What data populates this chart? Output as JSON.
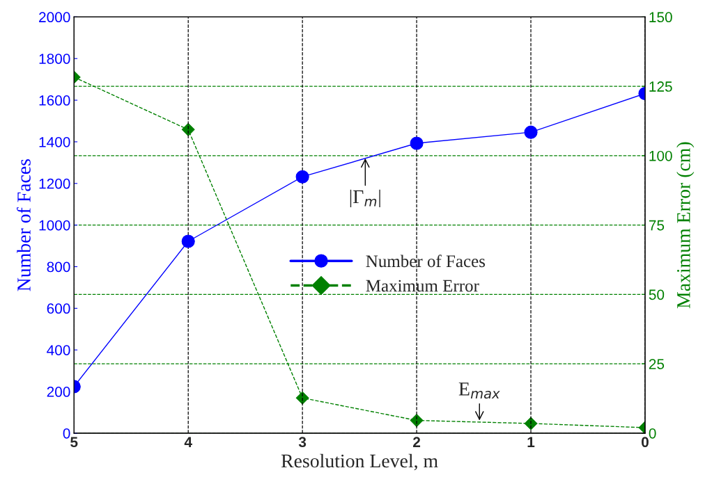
{
  "chart_data": {
    "type": "line",
    "xlabel": "Resolution Level, m",
    "ylabel": "Number of Faces",
    "y2label": "Maximum Error (cm)",
    "x": [
      5,
      4,
      3,
      2,
      1,
      0
    ],
    "series": [
      {
        "name": "Number of Faces",
        "color": "#0000ff",
        "values": [
          224,
          922,
          1232,
          1393,
          1446,
          1632
        ],
        "marker": "circle",
        "line_style": "solid"
      },
      {
        "name": "Maximum Error",
        "color": "#008000",
        "values": [
          128.3,
          109.4,
          12.7,
          4.6,
          3.5,
          2.0
        ],
        "marker": "diamond",
        "line_style": "dashed",
        "axis": "y2"
      }
    ],
    "xlim": [
      5,
      0
    ],
    "xticks": [
      5,
      4,
      3,
      2,
      1,
      0
    ],
    "ylim": [
      0,
      2000
    ],
    "yticks": [
      0,
      200,
      400,
      600,
      800,
      1000,
      1200,
      1400,
      1600,
      1800,
      2000
    ],
    "y2lim": [
      0,
      150
    ],
    "y2ticks": [
      0,
      25,
      50,
      75,
      100,
      125,
      150
    ],
    "grid": true,
    "legend": "center",
    "annotations": [
      {
        "text": "|Γ$_{m}$|",
        "x": 2.45,
        "y": 1330
      },
      {
        "text": "E$_{max}$",
        "x": 1.45,
        "y": 52
      }
    ]
  }
}
